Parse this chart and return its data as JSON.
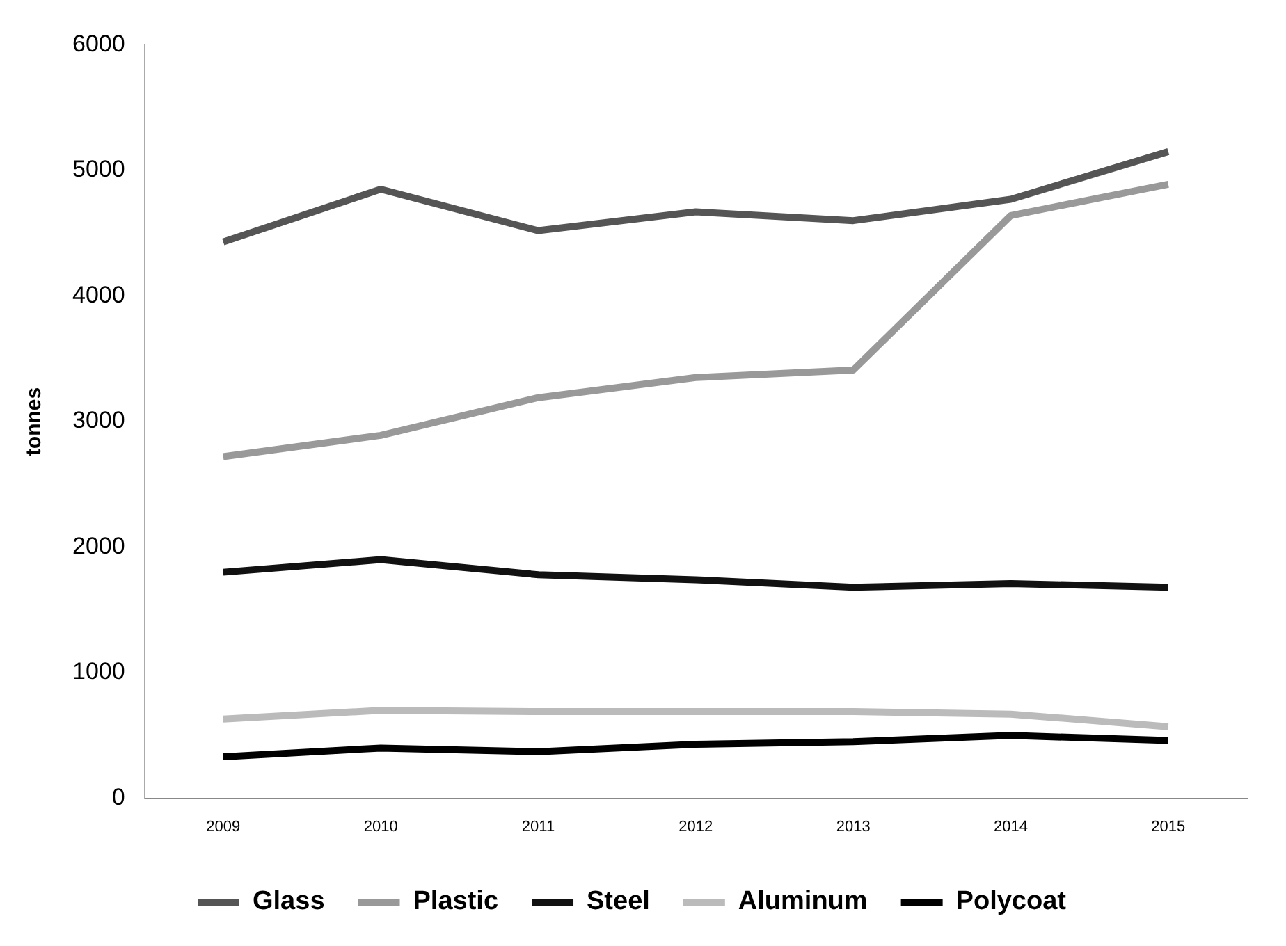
{
  "chart_data": {
    "type": "line",
    "ylabel": "tonnes",
    "categories": [
      "2009",
      "2010",
      "2011",
      "2012",
      "2013",
      "2014",
      "2015"
    ],
    "series": [
      {
        "name": "Glass",
        "color": "#555555",
        "values": [
          4430,
          4850,
          4520,
          4670,
          4600,
          4770,
          5150
        ]
      },
      {
        "name": "Plastic",
        "color": "#999999",
        "values": [
          2720,
          2890,
          3190,
          3350,
          3410,
          4640,
          4890
        ]
      },
      {
        "name": "Steel",
        "color": "#111111",
        "values": [
          1800,
          1900,
          1780,
          1740,
          1680,
          1710,
          1680
        ]
      },
      {
        "name": "Aluminum",
        "color": "#bbbbbb",
        "values": [
          630,
          700,
          690,
          690,
          690,
          670,
          570
        ]
      },
      {
        "name": "Polycoat",
        "color": "#000000",
        "values": [
          330,
          400,
          370,
          430,
          450,
          500,
          460
        ]
      }
    ],
    "ylim": [
      0,
      6000
    ],
    "yticks": [
      0,
      1000,
      2000,
      3000,
      4000,
      5000,
      6000
    ],
    "grid": false,
    "legend": "bottom",
    "marker": "none",
    "line_style": "solid"
  }
}
